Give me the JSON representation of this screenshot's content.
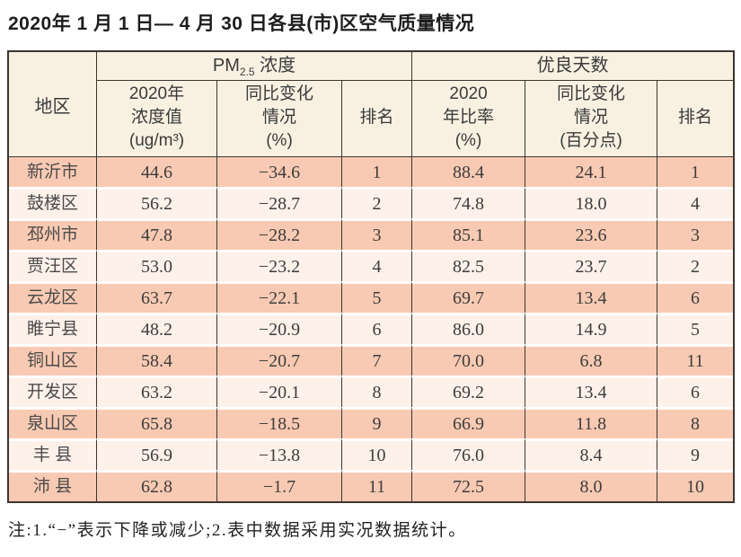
{
  "page": {
    "title": "2020年 1 月 1 日— 4 月 30 日各县(市)区空气质量情况",
    "footnote": "注:1.“−”表示下降或减少;2.表中数据采用实况数据统计。"
  },
  "table": {
    "region_header": "地区",
    "pm_group": {
      "prefix": "PM",
      "sub": "2.5",
      "suffix": " 浓度"
    },
    "good_group": {
      "label": "优良天数"
    },
    "subheaders": [
      "2020年\n浓度值\n(ug/m³)",
      "同比变化\n情况\n(%)",
      "排名",
      "2020\n年比率\n(%)",
      "同比变化\n情况\n(百分点)",
      "排名"
    ],
    "rows": [
      {
        "region": "新沂市",
        "pm_value": "44.6",
        "pm_change": "−34.6",
        "pm_rank": "1",
        "good_rate": "88.4",
        "good_change": "24.1",
        "good_rank": "1"
      },
      {
        "region": "鼓楼区",
        "pm_value": "56.2",
        "pm_change": "−28.7",
        "pm_rank": "2",
        "good_rate": "74.8",
        "good_change": "18.0",
        "good_rank": "4"
      },
      {
        "region": "邳州市",
        "pm_value": "47.8",
        "pm_change": "−28.2",
        "pm_rank": "3",
        "good_rate": "85.1",
        "good_change": "23.6",
        "good_rank": "3"
      },
      {
        "region": "贾汪区",
        "pm_value": "53.0",
        "pm_change": "−23.2",
        "pm_rank": "4",
        "good_rate": "82.5",
        "good_change": "23.7",
        "good_rank": "2"
      },
      {
        "region": "云龙区",
        "pm_value": "63.7",
        "pm_change": "−22.1",
        "pm_rank": "5",
        "good_rate": "69.7",
        "good_change": "13.4",
        "good_rank": "6"
      },
      {
        "region": "睢宁县",
        "pm_value": "48.2",
        "pm_change": "−20.9",
        "pm_rank": "6",
        "good_rate": "86.0",
        "good_change": "14.9",
        "good_rank": "5"
      },
      {
        "region": "铜山区",
        "pm_value": "58.4",
        "pm_change": "−20.7",
        "pm_rank": "7",
        "good_rate": "70.0",
        "good_change": "6.8",
        "good_rank": "11"
      },
      {
        "region": "开发区",
        "pm_value": "63.2",
        "pm_change": "−20.1",
        "pm_rank": "8",
        "good_rate": "69.2",
        "good_change": "13.4",
        "good_rank": "6"
      },
      {
        "region": "泉山区",
        "pm_value": "65.8",
        "pm_change": "−18.5",
        "pm_rank": "9",
        "good_rate": "66.9",
        "good_change": "11.8",
        "good_rank": "8"
      },
      {
        "region": "丰 县",
        "pm_value": "56.9",
        "pm_change": "−13.8",
        "pm_rank": "10",
        "good_rate": "76.0",
        "good_change": "8.4",
        "good_rank": "9"
      },
      {
        "region": "沛 县",
        "pm_value": "62.8",
        "pm_change": "−1.7",
        "pm_rank": "11",
        "good_rate": "72.5",
        "good_change": "8.0",
        "good_rank": "10"
      }
    ]
  },
  "colors": {
    "row_salmon": "#f9cab3",
    "row_light": "#fdf1ea",
    "header_bg": "#f8f1e2",
    "border": "#3c362f"
  },
  "chart_data": {
    "type": "table",
    "title": "2020年1月1日—4月30日各县(市)区空气质量情况",
    "column_groups": [
      "地区",
      "PM2.5浓度",
      "PM2.5浓度",
      "PM2.5浓度",
      "优良天数",
      "优良天数",
      "优良天数"
    ],
    "columns": [
      "地区",
      "2020年浓度值(ug/m³)",
      "同比变化情况(%)",
      "排名",
      "2020年比率(%)",
      "同比变化情况(百分点)",
      "排名"
    ],
    "rows": [
      [
        "新沂市",
        44.6,
        -34.6,
        1,
        88.4,
        24.1,
        1
      ],
      [
        "鼓楼区",
        56.2,
        -28.7,
        2,
        74.8,
        18.0,
        4
      ],
      [
        "邳州市",
        47.8,
        -28.2,
        3,
        85.1,
        23.6,
        3
      ],
      [
        "贾汪区",
        53.0,
        -23.2,
        4,
        82.5,
        23.7,
        2
      ],
      [
        "云龙区",
        63.7,
        -22.1,
        5,
        69.7,
        13.4,
        6
      ],
      [
        "睢宁县",
        48.2,
        -20.9,
        6,
        86.0,
        14.9,
        5
      ],
      [
        "铜山区",
        58.4,
        -20.7,
        7,
        70.0,
        6.8,
        11
      ],
      [
        "开发区",
        63.2,
        -20.1,
        8,
        69.2,
        13.4,
        6
      ],
      [
        "泉山区",
        65.8,
        -18.5,
        9,
        66.9,
        11.8,
        8
      ],
      [
        "丰县",
        56.9,
        -13.8,
        10,
        76.0,
        8.4,
        9
      ],
      [
        "沛县",
        62.8,
        -1.7,
        11,
        72.5,
        8.0,
        10
      ]
    ],
    "footnote": "注:1.“−”表示下降或减少;2.表中数据采用实况数据统计。"
  }
}
